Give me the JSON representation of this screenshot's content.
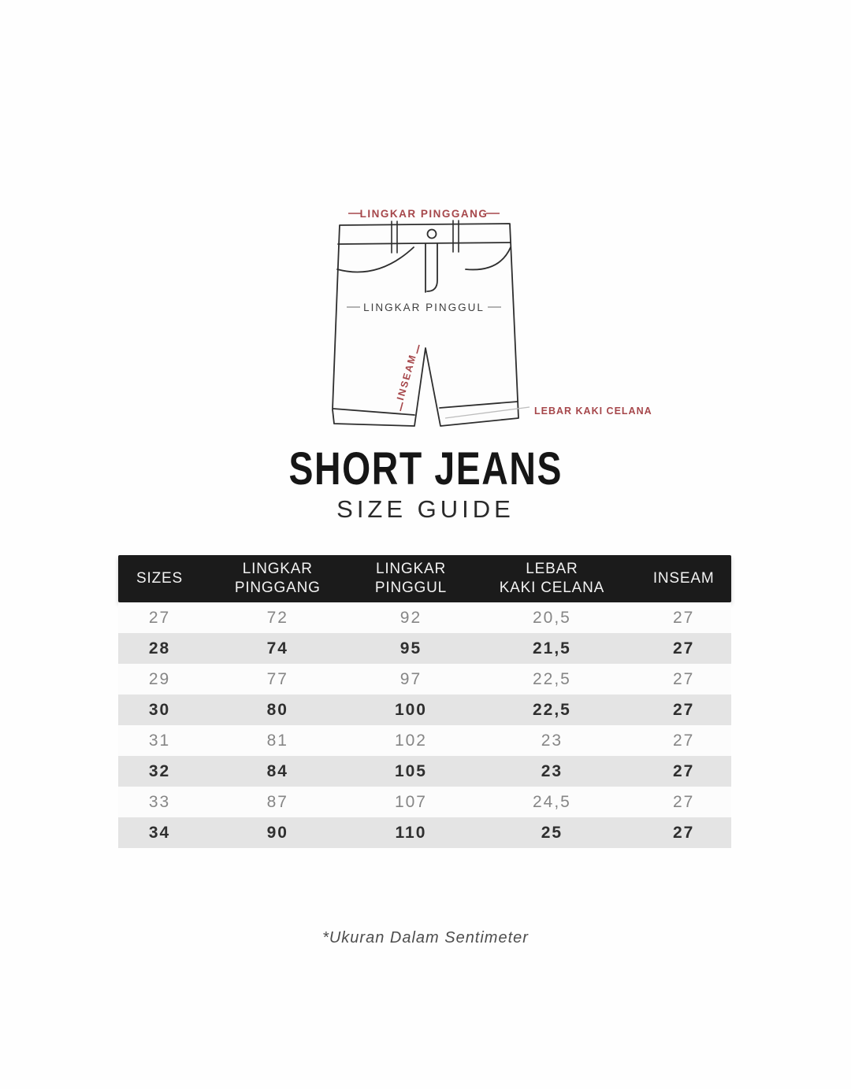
{
  "page": {
    "background": "#fefefe",
    "accent_color": "#a6474b"
  },
  "diagram": {
    "labels": {
      "waist": "LINGKAR PINGGANG",
      "hip": "LINGKAR PINGGUL",
      "inseam": "INSEAM",
      "leg_opening": "LEBAR KAKI CELANA"
    },
    "label_color": "#a6474b",
    "line_color": "#2e2e2e"
  },
  "title": {
    "main": "SHORT JEANS",
    "subtitle": "SIZE GUIDE"
  },
  "table": {
    "header_bg": "#1b1b1b",
    "alt_row_bg": "#e4e4e4",
    "headers": [
      {
        "lines": [
          "SIZES"
        ]
      },
      {
        "lines": [
          "LINGKAR",
          "PINGGANG"
        ]
      },
      {
        "lines": [
          "LINGKAR",
          "PINGGUL"
        ]
      },
      {
        "lines": [
          "LEBAR",
          "KAKI CELANA"
        ]
      },
      {
        "lines": [
          "INSEAM"
        ]
      }
    ],
    "rows": [
      [
        "27",
        "72",
        "92",
        "20,5",
        "27"
      ],
      [
        "28",
        "74",
        "95",
        "21,5",
        "27"
      ],
      [
        "29",
        "77",
        "97",
        "22,5",
        "27"
      ],
      [
        "30",
        "80",
        "100",
        "22,5",
        "27"
      ],
      [
        "31",
        "81",
        "102",
        "23",
        "27"
      ],
      [
        "32",
        "84",
        "105",
        "23",
        "27"
      ],
      [
        "33",
        "87",
        "107",
        "24,5",
        "27"
      ],
      [
        "34",
        "90",
        "110",
        "25",
        "27"
      ]
    ]
  },
  "footnote": "*Ukuran Dalam Sentimeter"
}
